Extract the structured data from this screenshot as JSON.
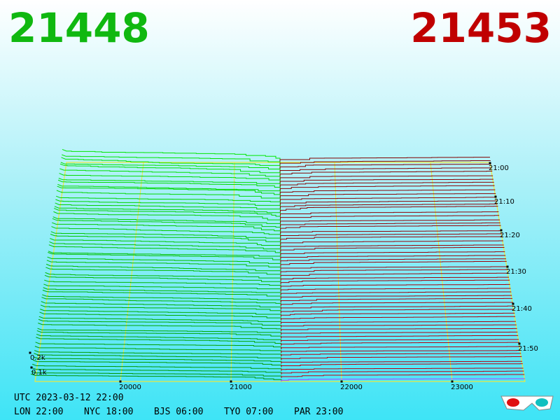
{
  "header": {
    "bid": "21448",
    "ask": "21453"
  },
  "axes": {
    "price_ticks": [
      "20000",
      "21000",
      "22000",
      "23000"
    ],
    "time_ticks": [
      "21:00",
      "21:10",
      "21:20",
      "21:30",
      "21:40",
      "21:50"
    ],
    "depth_ticks": [
      "0.2k",
      "0.1k"
    ]
  },
  "footer": {
    "utc": "UTC 2023-03-12 22:00",
    "zones": [
      "LON 22:00",
      "NYC 18:00",
      "BJS 06:00",
      "TYO 07:00",
      "PAR 23:00"
    ]
  }
}
